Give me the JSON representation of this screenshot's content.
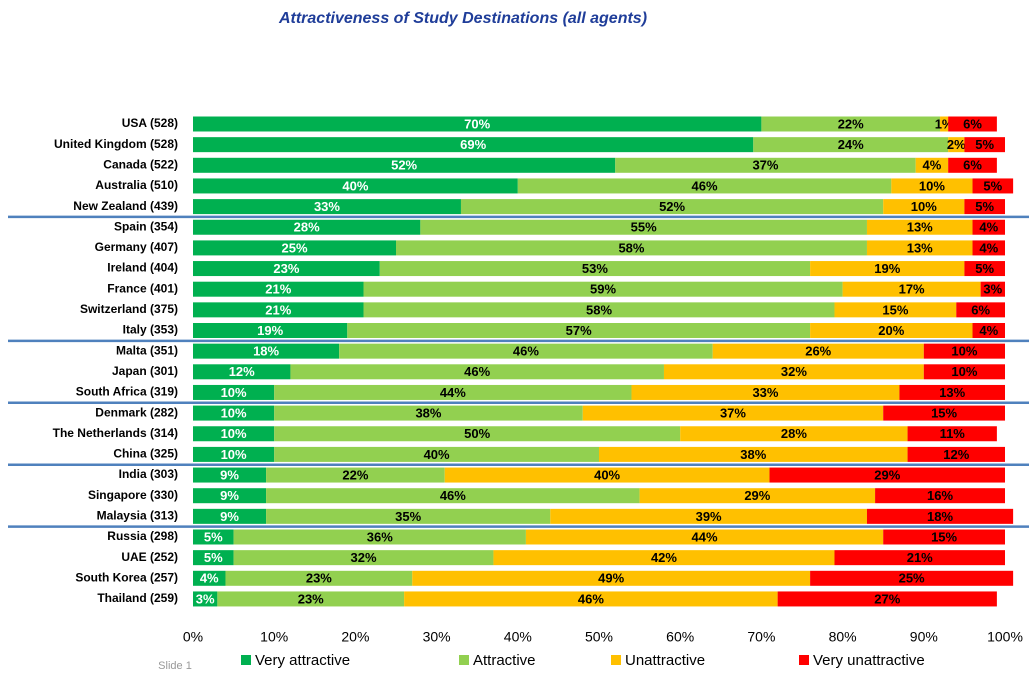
{
  "chart_data": {
    "type": "stacked_bar_horizontal",
    "title": "Attractiveness of Study Destinations (all agents)",
    "footer": "Slide 1",
    "categories": [
      "USA (528)",
      "United Kingdom (528)",
      "Canada (522)",
      "Australia (510)",
      "New Zealand (439)",
      "Spain (354)",
      "Germany (407)",
      "Ireland (404)",
      "France (401)",
      "Switzerland (375)",
      "Italy (353)",
      "Malta (351)",
      "Japan (301)",
      "South Africa (319)",
      "Denmark (282)",
      "The Netherlands (314)",
      "China (325)",
      "India (303)",
      "Singapore (330)",
      "Malaysia (313)",
      "Russia (298)",
      "UAE (252)",
      "South Korea (257)",
      "Thailand (259)"
    ],
    "series": [
      {
        "name": "Very attractive",
        "color": "#00b050",
        "values": [
          70,
          69,
          52,
          40,
          33,
          28,
          25,
          23,
          21,
          21,
          19,
          18,
          12,
          10,
          10,
          10,
          10,
          9,
          9,
          9,
          5,
          5,
          4,
          3
        ],
        "value_labels": [
          "70%",
          "69%",
          "52%",
          "40%",
          "33%",
          "28%",
          "25%",
          "23%",
          "21%",
          "21%",
          "19%",
          "18%",
          "12%",
          "10%",
          "10%",
          "10%",
          "10%",
          "9%",
          "9%",
          "9%",
          "5%",
          "5%",
          "4%",
          "3%"
        ]
      },
      {
        "name": "Attractive",
        "color": "#92d050",
        "values": [
          22,
          24,
          37,
          46,
          52,
          55,
          58,
          53,
          59,
          58,
          57,
          46,
          46,
          44,
          38,
          50,
          40,
          22,
          46,
          35,
          36,
          32,
          23,
          23
        ],
        "value_labels": [
          "22%",
          "24%",
          "37%",
          "46%",
          "52%",
          "55%",
          "58%",
          "53%",
          "59%",
          "58%",
          "57%",
          "46%",
          "46%",
          "44%",
          "38%",
          "50%",
          "40%",
          "22%",
          "46%",
          "35%",
          "36%",
          "32%",
          "23%",
          "23%"
        ]
      },
      {
        "name": "Unattractive",
        "color": "#ffc000",
        "values": [
          1,
          2,
          4,
          10,
          10,
          13,
          13,
          19,
          17,
          15,
          20,
          26,
          32,
          33,
          37,
          28,
          38,
          40,
          29,
          39,
          44,
          42,
          49,
          46
        ],
        "value_labels": [
          "1%",
          "2%",
          "4%",
          "10%",
          "10%",
          "13%",
          "13%",
          "19%",
          "17%",
          "15%",
          "20%",
          "26%",
          "32%",
          "33%",
          "37%",
          "28%",
          "38%",
          "40%",
          "29%",
          "39%",
          "44%",
          "42%",
          "49%",
          "46%"
        ]
      },
      {
        "name": "Very unattractive",
        "color": "#ff0000",
        "values": [
          6,
          5,
          6,
          5,
          5,
          4,
          4,
          5,
          3,
          6,
          4,
          10,
          10,
          13,
          15,
          11,
          12,
          29,
          16,
          18,
          15,
          21,
          25,
          27
        ],
        "value_labels": [
          "6%",
          "5%",
          "6%",
          "5%",
          "5%",
          "4%",
          "4%",
          "5%",
          "3%",
          "6%",
          "4%",
          "10%",
          "10%",
          "13%",
          "15%",
          "11%",
          "12%",
          "29%",
          "16%",
          "18%",
          "15%",
          "21%",
          "25%",
          "27%"
        ]
      }
    ],
    "xlim": [
      0,
      100
    ],
    "xticks": [
      {
        "value": 0,
        "label": "0%"
      },
      {
        "value": 10,
        "label": "10%"
      },
      {
        "value": 20,
        "label": "20%"
      },
      {
        "value": 30,
        "label": "30%"
      },
      {
        "value": 40,
        "label": "40%"
      },
      {
        "value": 50,
        "label": "50%"
      },
      {
        "value": 60,
        "label": "60%"
      },
      {
        "value": 70,
        "label": "70%"
      },
      {
        "value": 80,
        "label": "80%"
      },
      {
        "value": 90,
        "label": "90%"
      },
      {
        "value": 100,
        "label": "100%"
      }
    ]
  }
}
